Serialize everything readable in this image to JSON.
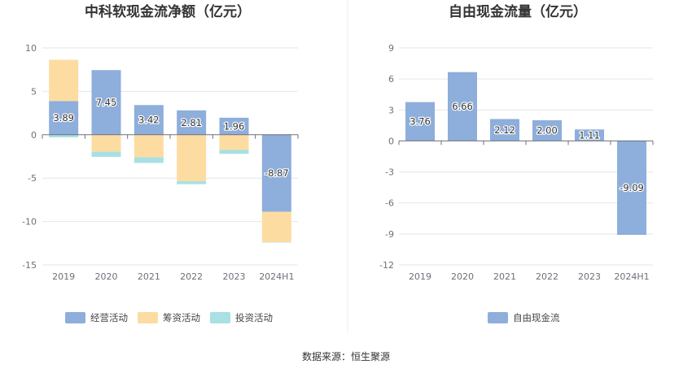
{
  "source_text": "数据来源：恒生聚源",
  "chart_data": [
    {
      "type": "bar",
      "stacked": true,
      "title": "中科软现金流净额（亿元）",
      "categories": [
        "2019",
        "2020",
        "2021",
        "2022",
        "2023",
        "2024H1"
      ],
      "yticks": [
        "10",
        "5",
        "0",
        "-5",
        "-10",
        "-15"
      ],
      "ylim": [
        -15,
        10
      ],
      "grid": true,
      "legend_position": "bottom",
      "series": [
        {
          "name": "经营活动",
          "color": "#8eaedb",
          "values": [
            3.89,
            7.45,
            3.42,
            2.81,
            1.96,
            -8.87
          ],
          "labels": [
            "3.89",
            "7.45",
            "3.42",
            "2.81",
            "1.96",
            "-8.87"
          ]
        },
        {
          "name": "筹资活动",
          "color": "#fddca2",
          "values": [
            4.75,
            -1.95,
            -2.6,
            -5.35,
            -1.75,
            -3.5
          ]
        },
        {
          "name": "投资活动",
          "color": "#a8e0e3",
          "values": [
            -0.3,
            -0.6,
            -0.65,
            -0.35,
            -0.45,
            -0.05
          ]
        }
      ]
    },
    {
      "type": "bar",
      "title": "自由现金流量（亿元）",
      "categories": [
        "2019",
        "2020",
        "2021",
        "2022",
        "2023",
        "2024H1"
      ],
      "yticks": [
        "9",
        "6",
        "3",
        "0",
        "-3",
        "-6",
        "-9",
        "-12"
      ],
      "ylim": [
        -12,
        9
      ],
      "grid": true,
      "legend_position": "bottom",
      "series": [
        {
          "name": "自由现金流",
          "color": "#8eaedb",
          "values": [
            3.76,
            6.66,
            2.12,
            2.0,
            1.11,
            -9.09
          ],
          "labels": [
            "3.76",
            "6.66",
            "2.12",
            "2.00",
            "1.11",
            "-9.09"
          ]
        }
      ]
    }
  ]
}
